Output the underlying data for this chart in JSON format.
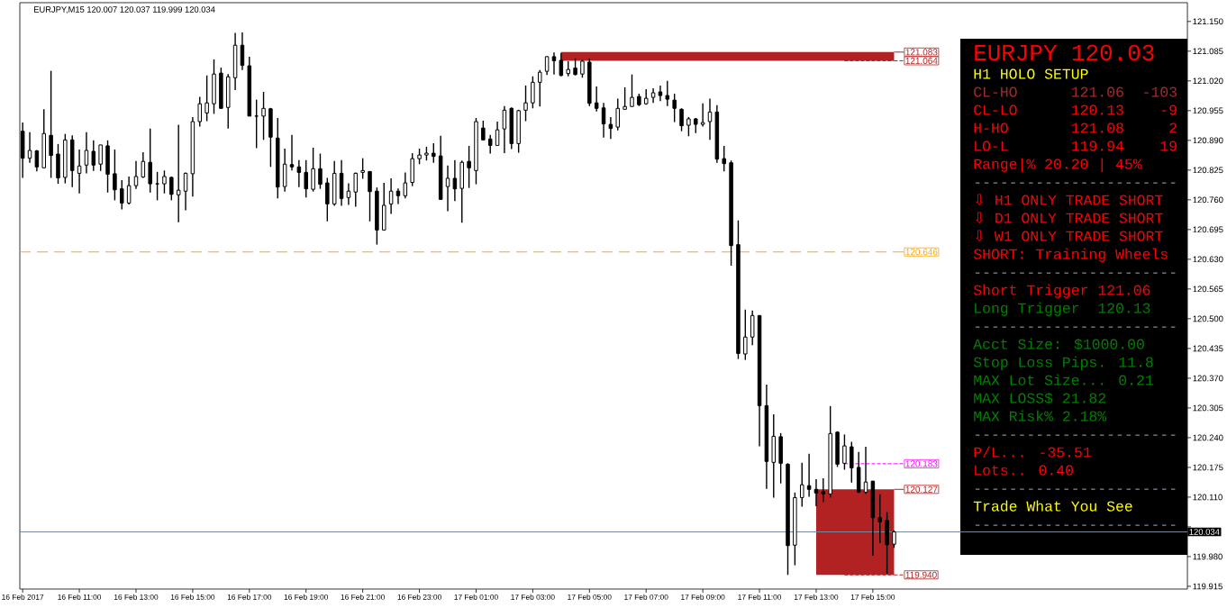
{
  "chart_data": [
    {
      "type": "candlestick",
      "title": "EURJPY,M15 120.007 120.037 119.999 120.034",
      "x": [
        "2017-02-16T09:00",
        "2017-02-16T09:15",
        "2017-02-16T09:30",
        "2017-02-16T09:45",
        "2017-02-16T10:00",
        "2017-02-16T10:15",
        "2017-02-16T10:30",
        "2017-02-16T10:45",
        "2017-02-16T11:00",
        "2017-02-16T11:15",
        "2017-02-16T11:30",
        "2017-02-16T11:45",
        "2017-02-16T12:00",
        "2017-02-16T12:15",
        "2017-02-16T12:30",
        "2017-02-16T12:45",
        "2017-02-16T13:00",
        "2017-02-16T13:15",
        "2017-02-16T13:30",
        "2017-02-16T13:45",
        "2017-02-16T14:00",
        "2017-02-16T14:15",
        "2017-02-16T14:30",
        "2017-02-16T14:45",
        "2017-02-16T15:00",
        "2017-02-16T15:15",
        "2017-02-16T15:30",
        "2017-02-16T15:45",
        "2017-02-16T16:00",
        "2017-02-16T16:15",
        "2017-02-16T16:30",
        "2017-02-16T16:45",
        "2017-02-16T17:00",
        "2017-02-16T17:15",
        "2017-02-16T17:30",
        "2017-02-16T17:45",
        "2017-02-16T18:00",
        "2017-02-16T18:15",
        "2017-02-16T18:30",
        "2017-02-16T18:45",
        "2017-02-16T19:00",
        "2017-02-16T19:15",
        "2017-02-16T19:30",
        "2017-02-16T19:45",
        "2017-02-16T20:00",
        "2017-02-16T20:15",
        "2017-02-16T20:30",
        "2017-02-16T20:45",
        "2017-02-16T21:00",
        "2017-02-16T21:15",
        "2017-02-16T21:30",
        "2017-02-16T21:45",
        "2017-02-16T22:00",
        "2017-02-16T22:15",
        "2017-02-16T22:30",
        "2017-02-16T22:45",
        "2017-02-16T23:00",
        "2017-02-16T23:15",
        "2017-02-16T23:30",
        "2017-02-16T23:45",
        "2017-02-17T00:00",
        "2017-02-17T00:15",
        "2017-02-17T00:30",
        "2017-02-17T00:45",
        "2017-02-17T01:00",
        "2017-02-17T01:15",
        "2017-02-17T01:30",
        "2017-02-17T01:45",
        "2017-02-17T02:00",
        "2017-02-17T02:15",
        "2017-02-17T02:30",
        "2017-02-17T02:45",
        "2017-02-17T03:00",
        "2017-02-17T03:15",
        "2017-02-17T03:30",
        "2017-02-17T03:45",
        "2017-02-17T04:00",
        "2017-02-17T04:15",
        "2017-02-17T04:30",
        "2017-02-17T04:45",
        "2017-02-17T05:00",
        "2017-02-17T05:15",
        "2017-02-17T05:30",
        "2017-02-17T05:45",
        "2017-02-17T06:00",
        "2017-02-17T06:15",
        "2017-02-17T06:30",
        "2017-02-17T06:45",
        "2017-02-17T07:00",
        "2017-02-17T07:15",
        "2017-02-17T07:30",
        "2017-02-17T07:45",
        "2017-02-17T08:00",
        "2017-02-17T08:15",
        "2017-02-17T08:30",
        "2017-02-17T08:45",
        "2017-02-17T09:00",
        "2017-02-17T09:15",
        "2017-02-17T09:30",
        "2017-02-17T09:45",
        "2017-02-17T10:00",
        "2017-02-17T10:15",
        "2017-02-17T10:30",
        "2017-02-17T10:45",
        "2017-02-17T11:00",
        "2017-02-17T11:15",
        "2017-02-17T11:30",
        "2017-02-17T11:45",
        "2017-02-17T12:00",
        "2017-02-17T12:15",
        "2017-02-17T12:30",
        "2017-02-17T12:45",
        "2017-02-17T13:00",
        "2017-02-17T13:15",
        "2017-02-17T13:30",
        "2017-02-17T13:45",
        "2017-02-17T14:00",
        "2017-02-17T14:15",
        "2017-02-17T14:30",
        "2017-02-17T14:45",
        "2017-02-17T15:00",
        "2017-02-17T15:15",
        "2017-02-17T15:30",
        "2017-02-17T15:45"
      ],
      "ohlc": [
        [
          120.91,
          120.929,
          120.808,
          120.851
        ],
        [
          120.851,
          120.908,
          120.841,
          120.868
        ],
        [
          120.867,
          120.869,
          120.822,
          120.832
        ],
        [
          120.83,
          120.958,
          120.83,
          120.905
        ],
        [
          120.901,
          121.042,
          120.808,
          120.857
        ],
        [
          120.86,
          120.882,
          120.795,
          120.808
        ],
        [
          120.809,
          120.904,
          120.796,
          120.891
        ],
        [
          120.891,
          120.901,
          120.788,
          120.824
        ],
        [
          120.818,
          120.87,
          120.774,
          120.834
        ],
        [
          120.836,
          120.908,
          120.818,
          120.868
        ],
        [
          120.866,
          120.89,
          120.823,
          120.836
        ],
        [
          120.838,
          120.88,
          120.823,
          120.88
        ],
        [
          120.878,
          120.89,
          120.776,
          120.816
        ],
        [
          120.817,
          120.87,
          120.759,
          120.782
        ],
        [
          120.784,
          120.803,
          120.739,
          120.753
        ],
        [
          120.753,
          120.811,
          120.75,
          120.791
        ],
        [
          120.791,
          120.845,
          120.784,
          120.811
        ],
        [
          120.81,
          120.864,
          120.808,
          120.844
        ],
        [
          120.842,
          120.916,
          120.776,
          120.795
        ],
        [
          120.795,
          120.821,
          120.759,
          120.795
        ],
        [
          120.795,
          120.824,
          120.774,
          120.811
        ],
        [
          120.809,
          120.811,
          120.759,
          120.772
        ],
        [
          120.771,
          120.924,
          120.711,
          120.781
        ],
        [
          120.779,
          120.82,
          120.737,
          120.818
        ],
        [
          120.817,
          120.941,
          120.767,
          120.931
        ],
        [
          120.931,
          120.985,
          120.92,
          120.97
        ],
        [
          120.95,
          121.032,
          120.932,
          120.972
        ],
        [
          120.97,
          121.067,
          120.948,
          121.035
        ],
        [
          121.037,
          121.049,
          120.96,
          120.96
        ],
        [
          120.962,
          121.035,
          120.916,
          121.029
        ],
        [
          121.027,
          121.125,
          121.0,
          121.098
        ],
        [
          121.098,
          121.126,
          121.044,
          121.054
        ],
        [
          121.053,
          121.073,
          120.943,
          120.943
        ],
        [
          120.943,
          120.979,
          120.873,
          120.943
        ],
        [
          120.943,
          120.996,
          120.891,
          120.96
        ],
        [
          120.959,
          120.961,
          120.832,
          120.897
        ],
        [
          120.895,
          120.939,
          120.763,
          120.788
        ],
        [
          120.789,
          120.872,
          120.778,
          120.838
        ],
        [
          120.837,
          120.902,
          120.824,
          120.832
        ],
        [
          120.832,
          120.847,
          120.788,
          120.82
        ],
        [
          120.82,
          120.847,
          120.765,
          120.784
        ],
        [
          120.783,
          120.874,
          120.778,
          120.828
        ],
        [
          120.828,
          120.861,
          120.784,
          120.794
        ],
        [
          120.797,
          120.808,
          120.713,
          120.751
        ],
        [
          120.751,
          120.845,
          120.747,
          120.818
        ],
        [
          120.818,
          120.847,
          120.747,
          120.763
        ],
        [
          120.765,
          120.796,
          120.749,
          120.779
        ],
        [
          120.777,
          120.82,
          120.745,
          120.818
        ],
        [
          120.82,
          120.851,
          120.806,
          120.824
        ],
        [
          120.822,
          120.822,
          120.713,
          120.778
        ],
        [
          120.779,
          120.787,
          120.662,
          120.694
        ],
        [
          120.694,
          120.797,
          120.694,
          120.748
        ],
        [
          120.751,
          120.807,
          120.729,
          120.779
        ],
        [
          120.779,
          120.785,
          120.751,
          120.769
        ],
        [
          120.769,
          120.82,
          120.763,
          120.797
        ],
        [
          120.798,
          120.862,
          120.79,
          120.85
        ],
        [
          120.85,
          120.872,
          120.838,
          120.858
        ],
        [
          120.858,
          120.876,
          120.846,
          120.862
        ],
        [
          120.862,
          120.884,
          120.841,
          120.855
        ],
        [
          120.856,
          120.9,
          120.761,
          120.761
        ],
        [
          120.789,
          120.835,
          120.735,
          120.807
        ],
        [
          120.807,
          120.847,
          120.757,
          120.784
        ],
        [
          120.785,
          120.846,
          120.71,
          120.842
        ],
        [
          120.844,
          120.878,
          120.786,
          120.83
        ],
        [
          120.824,
          120.939,
          120.794,
          120.931
        ],
        [
          120.917,
          120.933,
          120.891,
          120.891
        ],
        [
          120.893,
          120.902,
          120.861,
          120.879
        ],
        [
          120.879,
          120.931,
          120.879,
          120.913
        ],
        [
          120.915,
          120.965,
          120.862,
          120.956
        ],
        [
          120.96,
          120.962,
          120.871,
          120.883
        ],
        [
          120.883,
          120.957,
          120.863,
          120.955
        ],
        [
          120.956,
          121.01,
          120.932,
          120.972
        ],
        [
          120.972,
          121.03,
          120.96,
          121.017
        ],
        [
          121.017,
          121.044,
          120.964,
          121.039
        ],
        [
          121.041,
          121.074,
          121.033,
          121.073
        ],
        [
          121.073,
          121.082,
          121.034,
          121.064
        ],
        [
          121.065,
          121.081,
          121.03,
          121.032
        ],
        [
          121.036,
          121.063,
          121.03,
          121.045
        ],
        [
          121.048,
          121.069,
          121.032,
          121.034
        ],
        [
          121.035,
          121.066,
          121.027,
          121.063
        ],
        [
          121.061,
          121.069,
          120.965,
          120.971
        ],
        [
          120.972,
          121.008,
          120.953,
          120.96
        ],
        [
          120.961,
          120.972,
          120.896,
          120.926
        ],
        [
          120.925,
          120.941,
          120.893,
          120.916
        ],
        [
          120.919,
          120.981,
          120.912,
          120.96
        ],
        [
          120.958,
          121.006,
          120.958,
          120.964
        ],
        [
          120.964,
          121.034,
          120.964,
          120.984
        ],
        [
          120.986,
          120.992,
          120.965,
          120.968
        ],
        [
          120.97,
          121.002,
          120.968,
          120.982
        ],
        [
          120.984,
          121.004,
          120.972,
          120.994
        ],
        [
          120.996,
          121.01,
          120.976,
          120.988
        ],
        [
          120.988,
          121.02,
          120.965,
          120.98
        ],
        [
          120.978,
          120.992,
          120.93,
          120.96
        ],
        [
          120.958,
          120.96,
          120.91,
          120.922
        ],
        [
          120.923,
          120.941,
          120.899,
          120.937
        ],
        [
          120.937,
          120.939,
          120.906,
          120.925
        ],
        [
          120.925,
          120.971,
          120.92,
          120.929
        ],
        [
          120.931,
          120.981,
          120.891,
          120.952
        ],
        [
          120.952,
          120.967,
          120.841,
          120.849
        ],
        [
          120.85,
          120.878,
          120.822,
          120.839
        ],
        [
          120.841,
          120.846,
          120.616,
          120.66
        ],
        [
          120.662,
          120.715,
          120.412,
          120.424
        ],
        [
          120.423,
          120.52,
          120.41,
          120.46
        ],
        [
          120.46,
          120.518,
          120.442,
          120.507
        ],
        [
          120.507,
          120.507,
          120.221,
          120.31
        ],
        [
          120.31,
          120.356,
          120.128,
          120.188
        ],
        [
          120.186,
          120.291,
          120.109,
          120.243
        ],
        [
          120.242,
          120.25,
          120.14,
          120.184
        ],
        [
          120.182,
          120.184,
          119.94,
          120.004
        ],
        [
          120.005,
          120.12,
          119.961,
          120.109
        ],
        [
          120.109,
          120.185,
          120.089,
          120.137
        ],
        [
          120.135,
          120.205,
          120.111,
          120.127
        ],
        [
          120.127,
          120.149,
          120.09,
          120.119
        ],
        [
          120.122,
          120.151,
          120.099,
          120.117
        ],
        [
          120.117,
          120.309,
          120.109,
          120.249
        ],
        [
          120.252,
          120.254,
          120.176,
          120.182
        ],
        [
          120.184,
          120.247,
          120.17,
          120.222
        ],
        [
          120.22,
          120.231,
          120.142,
          120.174
        ],
        [
          120.175,
          120.209,
          120.119,
          120.121
        ],
        [
          120.121,
          120.22,
          120.117,
          120.143
        ],
        [
          120.145,
          120.145,
          119.982,
          120.065
        ],
        [
          120.065,
          120.116,
          120.01,
          120.056
        ],
        [
          120.059,
          120.077,
          119.943,
          120.006
        ],
        [
          120.007,
          120.037,
          119.999,
          120.034
        ]
      ],
      "series": [
        {
          "type": "line",
          "name": "121.083",
          "color": "#b22222",
          "x": [
            "2017-02-17T04:00",
            "2017-02-17T15:45"
          ],
          "values": [
            null,
            null
          ],
          "lower": [
            121.064,
            121.064
          ],
          "upper": [
            121.083,
            121.083
          ]
        },
        {
          "type": "line",
          "name": "121.064",
          "color": "#b22222",
          "line_style": "dotted",
          "x": [
            "2017-02-17T14:00",
            "2017-02-17T15:45"
          ],
          "values": [
            121.064,
            121.064
          ]
        },
        {
          "type": "line",
          "name": "120.183",
          "color": "#ff00ff",
          "line_style": "dotted",
          "x": [
            "2017-02-17T14:00",
            "2017-02-17T15:45"
          ],
          "values": [
            120.183,
            120.183
          ]
        },
        {
          "type": "line",
          "name": "120.127",
          "color": "#b22222",
          "x": [
            "2017-02-17T13:00",
            "2017-02-17T15:45"
          ],
          "values": [
            null,
            null
          ],
          "lower": [
            119.94,
            119.94
          ],
          "upper": [
            120.127,
            120.127
          ]
        },
        {
          "type": "line",
          "name": "119.940",
          "color": "#b22222",
          "line_style": "dotted",
          "x": [
            "2017-02-17T14:00",
            "2017-02-17T15:45"
          ],
          "values": [
            119.94,
            119.94
          ]
        }
      ],
      "legend": "right",
      "xlim": [
        "2017-02-16T08:54",
        "2017-02-18T02:06"
      ],
      "xticks": [
        {
          "value": "2017-02-16T09:00",
          "label": "16 Feb 2017"
        },
        {
          "value": "2017-02-16T11:00",
          "label": "16 Feb 11:00"
        },
        {
          "value": "2017-02-16T13:00",
          "label": "16 Feb 13:00"
        },
        {
          "value": "2017-02-16T15:00",
          "label": "16 Feb 15:00"
        },
        {
          "value": "2017-02-16T17:00",
          "label": "16 Feb 17:00"
        },
        {
          "value": "2017-02-16T19:00",
          "label": "16 Feb 19:00"
        },
        {
          "value": "2017-02-16T21:00",
          "label": "16 Feb 21:00"
        },
        {
          "value": "2017-02-16T23:00",
          "label": "16 Feb 23:00"
        },
        {
          "value": "2017-02-17T01:00",
          "label": "17 Feb 01:00"
        },
        {
          "value": "2017-02-17T03:00",
          "label": "17 Feb 03:00"
        },
        {
          "value": "2017-02-17T05:00",
          "label": "17 Feb 05:00"
        },
        {
          "value": "2017-02-17T07:00",
          "label": "17 Feb 07:00"
        },
        {
          "value": "2017-02-17T09:00",
          "label": "17 Feb 09:00"
        },
        {
          "value": "2017-02-17T11:00",
          "label": "17 Feb 11:00"
        },
        {
          "value": "2017-02-17T13:00",
          "label": "17 Feb 13:00"
        },
        {
          "value": "2017-02-17T15:00",
          "label": "17 Feb 15:00"
        }
      ],
      "ylim": [
        119.909,
        121.191
      ],
      "yticks": [
        {
          "value": 119.915,
          "label": "119.915"
        },
        {
          "value": 119.98,
          "label": "119.980"
        },
        {
          "value": 120.045,
          "label": null
        },
        {
          "value": 120.11,
          "label": "120.110"
        },
        {
          "value": 120.175,
          "label": "120.175"
        },
        {
          "value": 120.24,
          "label": "120.240"
        },
        {
          "value": 120.305,
          "label": "120.305"
        },
        {
          "value": 120.37,
          "label": "120.370"
        },
        {
          "value": 120.435,
          "label": "120.435"
        },
        {
          "value": 120.5,
          "label": "120.500"
        },
        {
          "value": 120.565,
          "label": "120.565"
        },
        {
          "value": 120.63,
          "label": "120.630"
        },
        {
          "value": 120.695,
          "label": "120.695"
        },
        {
          "value": 120.76,
          "label": "120.760"
        },
        {
          "value": 120.825,
          "label": "120.825"
        },
        {
          "value": 120.89,
          "label": "120.890"
        },
        {
          "value": 120.955,
          "label": "120.955"
        },
        {
          "value": 121.02,
          "label": "121.020"
        },
        {
          "value": 121.085,
          "label": "121.085"
        },
        {
          "value": 121.15,
          "label": "121.150"
        }
      ],
      "ref_lines": [
        {
          "axis": "y",
          "value": 120.646,
          "label": "120.646",
          "color": "#ffa500",
          "line_style": "dashed"
        },
        {
          "axis": "y",
          "value": 120.034,
          "label": "120.034",
          "color": "#778899",
          "line_style": "solid"
        }
      ]
    },
    {
      "type": "other",
      "title": "EURJPY 120.03",
      "annotations": [
        "H1 HOLO SETUP",
        "CL-HO      121.06  -103",
        "CL-LO      120.13    -9",
        "H-HO       121.08     2",
        "LO-L       119.94    19",
        "Range|% 20.20 | 45%",
        "-----------------------",
        "⇩ H1 ONLY TRADE SHORT",
        "⇩ D1 ONLY TRADE SHORT",
        "⇩ W1 ONLY TRADE SHORT",
        "SHORT: Training Wheels",
        "-----------------------",
        "Short Trigger 121.06",
        "Long Trigger  120.13",
        "-----------------------",
        "Acct Size: $1000.00",
        "Stop Loss Pips. 11.8",
        "MAX Lot Size... 0.21",
        "MAX LOSS$ 21.82",
        "MAX Risk% 2.18%",
        "-----------------------",
        "P/L... -35.51",
        "Lots.. 0.40",
        "-----------------------",
        "Trade What You See",
        "-----------------------"
      ],
      "colors": [
        "#ffff00",
        "#a52a2a",
        "#ff0000",
        "#ff0000",
        "#ff0000",
        "#ff0000",
        "#778899",
        "#ff0000",
        "#ff0000",
        "#ff0000",
        "#ff0000",
        "#778899",
        "#ff0000",
        "#008000",
        "#778899",
        "#008000",
        "#008000",
        "#008000",
        "#008000",
        "#008000",
        "#778899",
        "#ff0000",
        "#ff0000",
        "#778899",
        "#ffff00",
        "#778899"
      ]
    }
  ]
}
